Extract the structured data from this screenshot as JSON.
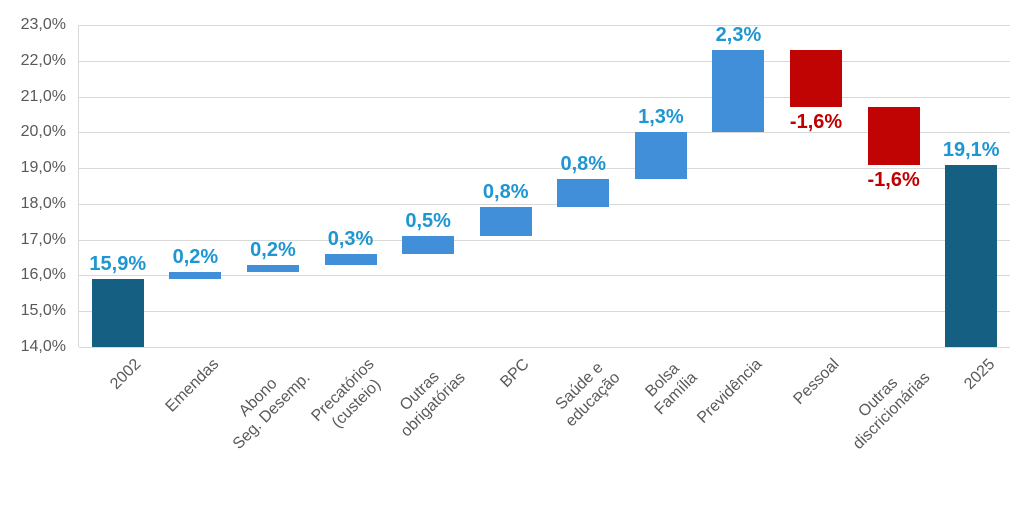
{
  "chart_data": {
    "type": "waterfall-bar",
    "title": "",
    "xlabel": "",
    "ylabel": "",
    "ylim": [
      14,
      23
    ],
    "ytick_step": 1,
    "ytick_labels": [
      "14,0%",
      "15,0%",
      "16,0%",
      "17,0%",
      "18,0%",
      "19,0%",
      "20,0%",
      "21,0%",
      "22,0%",
      "23,0%"
    ],
    "grid": true,
    "legend": "none",
    "categories": [
      [
        "2002"
      ],
      [
        "Emendas"
      ],
      [
        "Abono",
        "Seg. Desemp."
      ],
      [
        "Precatórios",
        "(custeio)"
      ],
      [
        "Outras",
        "obrigatórias"
      ],
      [
        "BPC"
      ],
      [
        "Saúde e",
        "educação"
      ],
      [
        "Bolsa",
        "Família"
      ],
      [
        "Previdência"
      ],
      [
        "Pessoal"
      ],
      [
        "Outras",
        "discricionárias"
      ],
      [
        "2025"
      ]
    ],
    "values": [
      15.9,
      0.2,
      0.2,
      0.3,
      0.5,
      0.8,
      0.8,
      1.3,
      2.3,
      -1.6,
      -1.6,
      19.1
    ],
    "bar_roles": [
      "total",
      "up",
      "up",
      "up",
      "up",
      "up",
      "up",
      "up",
      "up",
      "down",
      "down",
      "total"
    ],
    "value_labels": [
      "15,9%",
      "0,2%",
      "0,2%",
      "0,3%",
      "0,5%",
      "0,8%",
      "0,8%",
      "1,3%",
      "2,3%",
      "-1,6%",
      "-1,6%",
      "19,1%"
    ],
    "colors": {
      "total_bar": "#156082",
      "up_bar": "#418FD9",
      "down_bar": "#C00404",
      "up_label": "#1E96D2",
      "down_label": "#C00000",
      "gridline": "#D9D9D9",
      "axis_line": "#D9D9D9",
      "tick_text": "#595959",
      "category_text": "#595959"
    }
  }
}
